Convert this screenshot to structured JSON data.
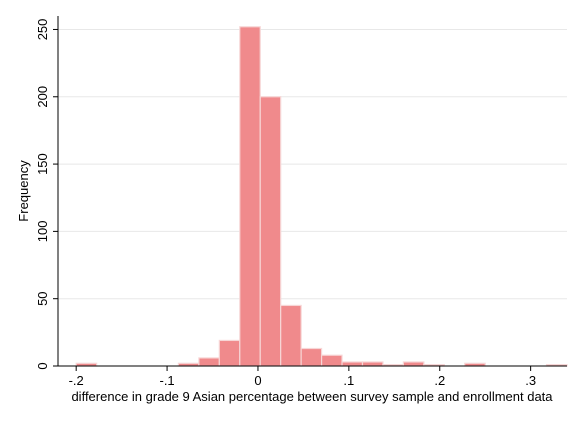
{
  "chart_data": {
    "type": "bar",
    "subtype": "histogram",
    "xlabel": "difference in grade 9 Asian percentage between survey sample and enrollment data",
    "ylabel": "Frequency",
    "xlim": [
      -0.22,
      0.34
    ],
    "ylim": [
      0,
      260
    ],
    "x_ticks": [
      {
        "value": -0.2,
        "label": "-.2"
      },
      {
        "value": -0.1,
        "label": "-.1"
      },
      {
        "value": 0,
        "label": "0"
      },
      {
        "value": 0.1,
        "label": ".1"
      },
      {
        "value": 0.2,
        "label": ".2"
      },
      {
        "value": 0.3,
        "label": ".3"
      }
    ],
    "y_ticks": [
      {
        "value": 0,
        "label": "0"
      },
      {
        "value": 50,
        "label": "50"
      },
      {
        "value": 100,
        "label": "100"
      },
      {
        "value": 150,
        "label": "150"
      },
      {
        "value": 200,
        "label": "200"
      },
      {
        "value": 250,
        "label": "250"
      }
    ],
    "grid": true,
    "colors": {
      "bar_fill": "#f08a8c",
      "bar_stroke": "#f7d6d6",
      "grid": "#e8e8e8",
      "axis": "#000000"
    },
    "bins": [
      {
        "start": -0.2,
        "end": -0.1775,
        "value": 2
      },
      {
        "start": -0.0875,
        "end": -0.065,
        "value": 2
      },
      {
        "start": -0.065,
        "end": -0.0425,
        "value": 6
      },
      {
        "start": -0.0425,
        "end": -0.02,
        "value": 19
      },
      {
        "start": -0.02,
        "end": 0.0025,
        "value": 252
      },
      {
        "start": 0.0025,
        "end": 0.025,
        "value": 200
      },
      {
        "start": 0.025,
        "end": 0.0475,
        "value": 45
      },
      {
        "start": 0.0475,
        "end": 0.07,
        "value": 13
      },
      {
        "start": 0.07,
        "end": 0.0925,
        "value": 8
      },
      {
        "start": 0.0925,
        "end": 0.115,
        "value": 3
      },
      {
        "start": 0.115,
        "end": 0.1375,
        "value": 3
      },
      {
        "start": 0.1375,
        "end": 0.16,
        "value": 1
      },
      {
        "start": 0.16,
        "end": 0.1825,
        "value": 3
      },
      {
        "start": 0.1825,
        "end": 0.205,
        "value": 1
      },
      {
        "start": 0.2275,
        "end": 0.25,
        "value": 2
      },
      {
        "start": 0.3175,
        "end": 0.34,
        "value": 1
      }
    ]
  }
}
